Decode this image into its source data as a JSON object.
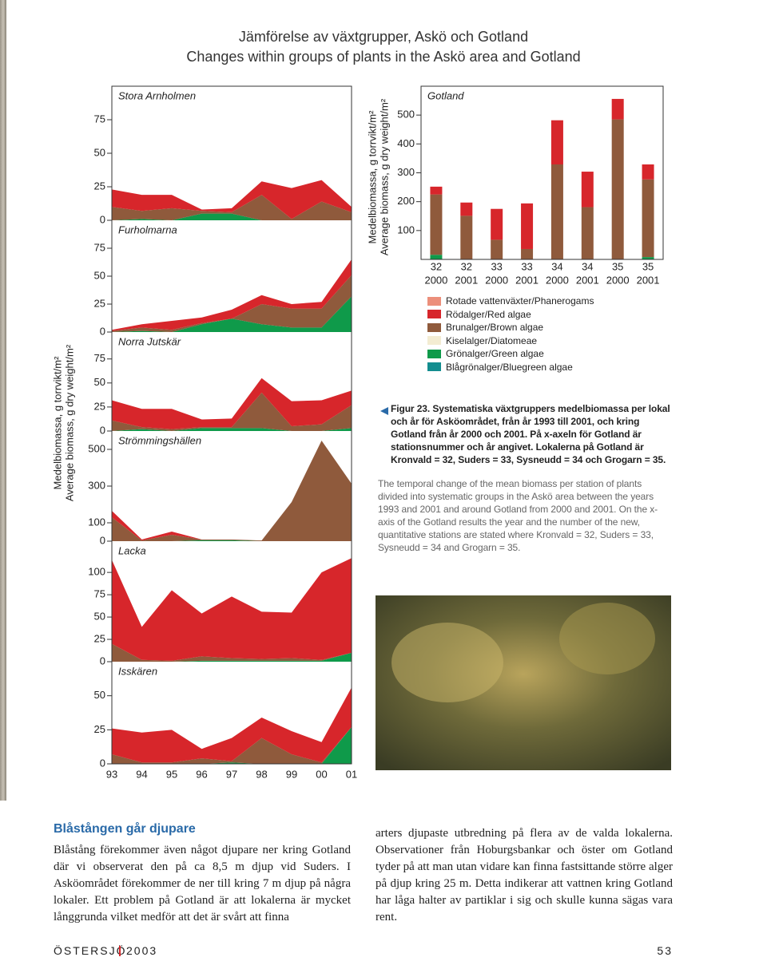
{
  "header": {
    "title_sv": "Jämförelse av växtgrupper, Askö och Gotland",
    "title_en": "Changes within groups of plants in the Askö area and Gotland"
  },
  "chart_data": [
    {
      "type": "area-panels",
      "y_label": [
        "Medelbiomassa, g torrvikt/m²",
        "Average biomass, g dry weight/m²"
      ],
      "categories": [
        "93",
        "94",
        "95",
        "96",
        "97",
        "98",
        "99",
        "00",
        "01"
      ],
      "panels": [
        {
          "title": "Stora Arnholmen",
          "ylim": [
            0,
            100
          ],
          "yticks": [
            0,
            25,
            50,
            75
          ],
          "series": [
            {
              "color": "#0f9a4a",
              "values": [
                0,
                1,
                0,
                5,
                5,
                0,
                0,
                0,
                0
              ]
            },
            {
              "color": "#8f5a3c",
              "values": [
                10,
                6,
                9,
                2,
                1,
                19,
                1,
                14,
                6
              ]
            },
            {
              "color": "#d7262b",
              "values": [
                13,
                12,
                10,
                1,
                3,
                10,
                23,
                16,
                4
              ]
            }
          ]
        },
        {
          "title": "Furholmarna",
          "ylim": [
            0,
            100
          ],
          "yticks": [
            0,
            25,
            50,
            75
          ],
          "series": [
            {
              "color": "#0f9a4a",
              "values": [
                0,
                1,
                0,
                7,
                12,
                7,
                4,
                4,
                32
              ]
            },
            {
              "color": "#8f5a3c",
              "values": [
                1,
                3,
                2,
                1,
                0,
                18,
                17,
                17,
                19
              ]
            },
            {
              "color": "#d7262b",
              "values": [
                1,
                3,
                8,
                5,
                8,
                8,
                4,
                6,
                14
              ]
            }
          ]
        },
        {
          "title": "Norra Jutskär",
          "ylim": [
            0,
            103
          ],
          "yticks": [
            0,
            25,
            50,
            75
          ],
          "series": [
            {
              "color": "#0f9a4a",
              "values": [
                0,
                2,
                0,
                3,
                3,
                3,
                0,
                0,
                3
              ]
            },
            {
              "color": "#8f5a3c",
              "values": [
                11,
                2,
                2,
                1,
                1,
                37,
                5,
                7,
                24
              ]
            },
            {
              "color": "#d7262b",
              "values": [
                21,
                19,
                21,
                8,
                9,
                15,
                26,
                25,
                15
              ]
            }
          ]
        },
        {
          "title": "Strömmingshällen",
          "ylim": [
            0,
            600
          ],
          "yticks": [
            0,
            100,
            300,
            500
          ],
          "series": [
            {
              "color": "#0f9a4a",
              "values": [
                0,
                0,
                0,
                5,
                5,
                0,
                0,
                0,
                0
              ]
            },
            {
              "color": "#8f5a3c",
              "values": [
                130,
                4,
                35,
                4,
                4,
                4,
                213,
                548,
                313
              ]
            },
            {
              "color": "#d7262b",
              "values": [
                35,
                5,
                17,
                0,
                0,
                0,
                0,
                0,
                0
              ]
            }
          ]
        },
        {
          "title": "Lacka",
          "ylim": [
            0,
            135
          ],
          "yticks": [
            0,
            25,
            50,
            75,
            100
          ],
          "series": [
            {
              "color": "#0f9a4a",
              "values": [
                0,
                0,
                0,
                1,
                1,
                1,
                1,
                1,
                10
              ]
            },
            {
              "color": "#8f5a3c",
              "values": [
                20,
                2,
                1,
                5,
                3,
                2,
                3,
                1,
                0
              ]
            },
            {
              "color": "#d7262b",
              "values": [
                94,
                37,
                79,
                48,
                69,
                53,
                51,
                98,
                106
              ]
            }
          ]
        },
        {
          "title": "Isskären",
          "ylim": [
            0,
            75
          ],
          "yticks": [
            0,
            25,
            50
          ],
          "series": [
            {
              "color": "#0f9a4a",
              "values": [
                0,
                0,
                0,
                0,
                1,
                0,
                0,
                0,
                27
              ]
            },
            {
              "color": "#8f5a3c",
              "values": [
                7,
                1,
                1,
                4,
                1,
                19,
                7,
                1,
                0
              ]
            },
            {
              "color": "#d7262b",
              "values": [
                19,
                22,
                24,
                7,
                17,
                15,
                17,
                15,
                29
              ]
            }
          ]
        }
      ]
    },
    {
      "type": "bar",
      "stacked": true,
      "title": "Gotland",
      "y_label": [
        "Medelbiomassa, g torrvikt/m²",
        "Average biomass, g dry weight/m²"
      ],
      "categories": [
        [
          "32",
          "2000"
        ],
        [
          "32",
          "2001"
        ],
        [
          "33",
          "2000"
        ],
        [
          "33",
          "2001"
        ],
        [
          "34",
          "2000"
        ],
        [
          "34",
          "2001"
        ],
        [
          "35",
          "2000"
        ],
        [
          "35",
          "2001"
        ]
      ],
      "ylim": [
        0,
        600
      ],
      "yticks": [
        100,
        200,
        300,
        400,
        500
      ],
      "series": [
        {
          "color": "#0f9a4a",
          "values": [
            16,
            0,
            0,
            0,
            0,
            0,
            0,
            8
          ]
        },
        {
          "color": "#8f5a3c",
          "values": [
            209,
            151,
            68,
            36,
            329,
            181,
            485,
            269
          ]
        },
        {
          "color": "#d7262b",
          "values": [
            27,
            46,
            107,
            158,
            153,
            123,
            71,
            52
          ]
        }
      ]
    }
  ],
  "legend": {
    "items": [
      {
        "label": "Rotade vattenväxter/Phanerogams",
        "color": "#ec8f7b"
      },
      {
        "label": "Rödalger/Red algae",
        "color": "#d7262b"
      },
      {
        "label": "Brunalger/Brown algae",
        "color": "#8f5a3c"
      },
      {
        "label": "Kiselalger/Diatomeae",
        "color": "#f3ecd2"
      },
      {
        "label": "Grönalger/Green algae",
        "color": "#0f9a4a"
      },
      {
        "label": "Blågrönalger/Bluegreen algae",
        "color": "#138d8f"
      }
    ]
  },
  "caption": {
    "sv": "Figur 23. Systematiska växtgruppers medelbiomassa per lokal och år för Asköområdet, från år 1993 till 2001, och kring Gotland från år 2000 och 2001. På x-axeln för Gotland är stationsnummer och år angivet. Lokalerna på Gotland är Kronvald = 32, Suders = 33, Sysneudd = 34 och Grogarn = 35.",
    "en": "The temporal change of the mean biomass per station of plants divided into systematic groups in the Askö area between the years 1993 and 2001 and around Gotland from 2000 and 2001. On the x-axis of the Gotland results the year and the number of the new, quantitative stations are stated where Kronvald = 32, Suders = 33, Sysneudd = 34 and Grogarn = 35."
  },
  "article": {
    "heading": "Blåstången går djupare",
    "paragraphs": [
      "Blåstång förekommer även något djupare ner kring Gotland där vi observerat den på ca 8,5 m djup vid Suders. I Asköområdet förekommer de ner till kring 7 m djup på några lokaler. Ett problem på Gotland är att lokalerna är mycket långgrunda vilket medför att det är svårt att finna",
      "arters djupaste utbredning på flera av de valda lokalerna. Observationer från Hoburgsbankar och öster om Gotland tyder på att man utan vidare kan finna fastsittande större alger på djup kring 25 m. Detta indikerar att vattnen kring Gotland har låga halter av partiklar i sig och skulle kunna sägas vara rent."
    ]
  },
  "footer": {
    "publication": "ÖSTERSJÖ",
    "year": "2003",
    "page": "53"
  }
}
